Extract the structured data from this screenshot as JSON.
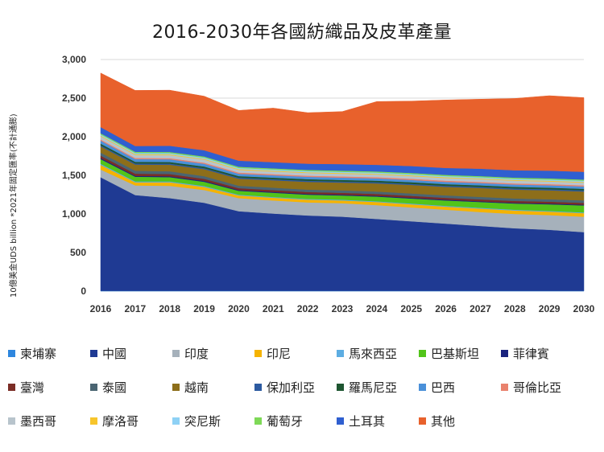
{
  "chart_data": {
    "type": "area",
    "stacked": true,
    "title": "2016-2030年各國紡織品及皮革產量",
    "ylabel": "10億美金UDS billion  *2021年固定匯率(不計通膨)",
    "xlabel": "",
    "x": [
      "2016",
      "2017",
      "2018",
      "2019",
      "2020",
      "2021",
      "2022",
      "2023",
      "2024",
      "2025",
      "2026",
      "2027",
      "2028",
      "2029",
      "2030"
    ],
    "ylim": [
      0,
      3000
    ],
    "yticks": [
      "0",
      "500",
      "1,000",
      "1,500",
      "2,000",
      "2,500",
      "3,000"
    ],
    "grid": true,
    "legend_position": "bottom",
    "series": [
      {
        "name": "柬埔寨",
        "color": "#2e86de",
        "values": [
          5,
          5,
          5,
          5,
          5,
          5,
          5,
          5,
          5,
          5,
          5,
          5,
          5,
          5,
          5
        ]
      },
      {
        "name": "中國",
        "color": "#1f3a93",
        "values": [
          1470,
          1240,
          1200,
          1140,
          1030,
          1000,
          975,
          960,
          930,
          900,
          870,
          840,
          810,
          790,
          760
        ]
      },
      {
        "name": "印度",
        "color": "#a6b1bb",
        "values": [
          100,
          125,
          160,
          165,
          170,
          170,
          170,
          175,
          180,
          180,
          180,
          180,
          185,
          190,
          200
        ]
      },
      {
        "name": "印尼",
        "color": "#f5b301",
        "values": [
          60,
          40,
          45,
          40,
          35,
          35,
          35,
          35,
          40,
          40,
          40,
          45,
          45,
          45,
          45
        ]
      },
      {
        "name": "馬來西亞",
        "color": "#5dade2",
        "values": [
          15,
          12,
          12,
          12,
          10,
          10,
          10,
          10,
          10,
          10,
          10,
          10,
          10,
          10,
          10
        ]
      },
      {
        "name": "巴基斯坦",
        "color": "#52c41a",
        "values": [
          60,
          60,
          55,
          55,
          50,
          55,
          55,
          55,
          60,
          65,
          70,
          75,
          80,
          85,
          90
        ]
      },
      {
        "name": "菲律賓",
        "color": "#1a237e",
        "values": [
          15,
          12,
          12,
          12,
          10,
          10,
          10,
          10,
          10,
          10,
          10,
          10,
          10,
          10,
          10
        ]
      },
      {
        "name": "臺灣",
        "color": "#7b2d26",
        "values": [
          30,
          28,
          28,
          26,
          24,
          24,
          24,
          24,
          24,
          24,
          24,
          24,
          24,
          24,
          24
        ]
      },
      {
        "name": "泰國",
        "color": "#4a6572",
        "values": [
          40,
          38,
          36,
          35,
          32,
          32,
          32,
          32,
          32,
          32,
          32,
          32,
          32,
          32,
          32
        ]
      },
      {
        "name": "越南",
        "color": "#8d6e1a",
        "values": [
          80,
          80,
          85,
          90,
          90,
          95,
          100,
          100,
          105,
          110,
          110,
          115,
          115,
          115,
          115
        ]
      },
      {
        "name": "保加利亞",
        "color": "#2c5aa0",
        "values": [
          15,
          15,
          15,
          15,
          15,
          15,
          15,
          15,
          15,
          15,
          15,
          15,
          15,
          15,
          15
        ]
      },
      {
        "name": "羅馬尼亞",
        "color": "#1e5631",
        "values": [
          20,
          20,
          20,
          20,
          20,
          20,
          20,
          20,
          20,
          20,
          20,
          20,
          20,
          20,
          20
        ]
      },
      {
        "name": "巴西",
        "color": "#4a90d9",
        "values": [
          40,
          35,
          35,
          35,
          30,
          30,
          30,
          30,
          30,
          30,
          30,
          30,
          30,
          30,
          30
        ]
      },
      {
        "name": "哥倫比亞",
        "color": "#e9826d",
        "values": [
          15,
          15,
          15,
          15,
          15,
          15,
          15,
          15,
          15,
          15,
          15,
          15,
          15,
          15,
          15
        ]
      },
      {
        "name": "墨西哥",
        "color": "#b8c4cc",
        "values": [
          40,
          40,
          40,
          40,
          35,
          35,
          35,
          35,
          35,
          35,
          35,
          35,
          35,
          35,
          35
        ]
      },
      {
        "name": "摩洛哥",
        "color": "#f7c52b",
        "values": [
          10,
          10,
          10,
          10,
          10,
          10,
          10,
          10,
          10,
          10,
          10,
          10,
          10,
          10,
          10
        ]
      },
      {
        "name": "突尼斯",
        "color": "#8ed1f5",
        "values": [
          15,
          15,
          15,
          15,
          15,
          15,
          15,
          15,
          15,
          15,
          15,
          15,
          15,
          15,
          15
        ]
      },
      {
        "name": "葡萄牙",
        "color": "#7ed957",
        "values": [
          15,
          15,
          15,
          15,
          15,
          15,
          15,
          15,
          15,
          15,
          15,
          15,
          15,
          15,
          15
        ]
      },
      {
        "name": "土耳其",
        "color": "#2f5fd0",
        "values": [
          80,
          75,
          80,
          80,
          80,
          80,
          80,
          85,
          85,
          90,
          90,
          95,
          95,
          100,
          100
        ]
      },
      {
        "name": "其他",
        "color": "#e8612c",
        "values": [
          700,
          720,
          720,
          700,
          650,
          700,
          660,
          680,
          820,
          840,
          880,
          900,
          930,
          970,
          960
        ]
      }
    ]
  }
}
